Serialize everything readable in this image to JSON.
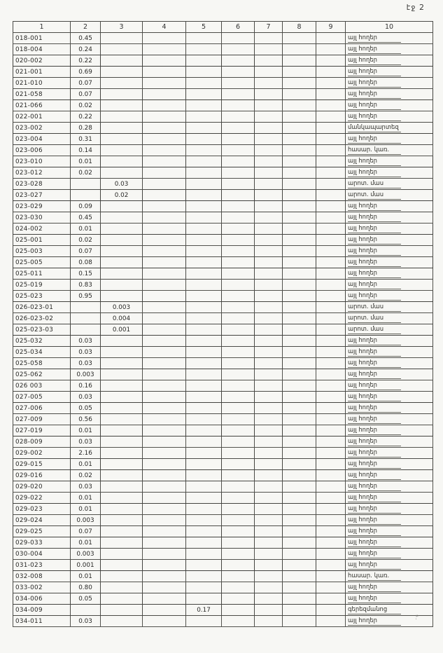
{
  "page": {
    "label": "էջ 2"
  },
  "table": {
    "headers": [
      "1",
      "2",
      "3",
      "4",
      "5",
      "6",
      "7",
      "8",
      "9",
      "10"
    ],
    "rows": [
      {
        "c1": "018-001",
        "c2": "0.45",
        "c10": "այլ հողեր"
      },
      {
        "c1": "018-004",
        "c2": "0.24",
        "c10": "այլ հողեր"
      },
      {
        "c1": "020-002",
        "c2": "0.22",
        "c10": "այլ հողեր"
      },
      {
        "c1": "021-001",
        "c2": "0.69",
        "c10": "այլ հողեր"
      },
      {
        "c1": "021-010",
        "c2": "0.07",
        "c10": "այլ հողեր"
      },
      {
        "c1": "021-058",
        "c2": "0.07",
        "c10": "այլ հողեր"
      },
      {
        "c1": "021-066",
        "c2": "0.02",
        "c10": "այլ հողեր"
      },
      {
        "c1": "022-001",
        "c2": "0.22",
        "c10": "այլ հողեր"
      },
      {
        "c1": "023-002",
        "c2": "0.28",
        "c10": "մանկապարտեզ"
      },
      {
        "c1": "023-004",
        "c2": "0.31",
        "c10": "այլ հողեր"
      },
      {
        "c1": "023-006",
        "c2": "0.14",
        "c10": "հասար. կառ."
      },
      {
        "c1": "023-010",
        "c2": "0.01",
        "c10": "այլ հողեր"
      },
      {
        "c1": "023-012",
        "c2": "0.02",
        "c10": "այլ հողեր"
      },
      {
        "c1": "023-028",
        "c3": "0.03",
        "c10": "արոտ. մաս"
      },
      {
        "c1": "023-027",
        "c3": "0.02",
        "c10": "արոտ. մաս"
      },
      {
        "c1": "023-029",
        "c2": "0.09",
        "c10": "այլ հողեր"
      },
      {
        "c1": "023-030",
        "c2": "0.45",
        "c10": "այլ հողեր"
      },
      {
        "c1": "024-002",
        "c2": "0.01",
        "c10": "այլ հողեր"
      },
      {
        "c1": "025-001",
        "c2": "0.02",
        "c10": "այլ հողեր"
      },
      {
        "c1": "025-003",
        "c2": "0.07",
        "c10": "այլ հողեր"
      },
      {
        "c1": "025-005",
        "c2": "0.08",
        "c10": "այլ հողեր"
      },
      {
        "c1": "025-011",
        "c2": "0.15",
        "c10": "այլ հողեր"
      },
      {
        "c1": "025-019",
        "c2": "0.83",
        "c10": "այլ հողեր"
      },
      {
        "c1": "025-023",
        "c2": "0.95",
        "c10": "այլ հողեր"
      },
      {
        "c1": "026-023-01",
        "c3": "0.003",
        "c10": "արոտ. մաս"
      },
      {
        "c1": "026-023-02",
        "c3": "0.004",
        "c10": "արոտ. մաս"
      },
      {
        "c1": "025-023-03",
        "c3": "0.001",
        "c10": "արոտ. մաս"
      },
      {
        "c1": "025-032",
        "c2": "0.03",
        "c10": "այլ հողեր"
      },
      {
        "c1": "025-034",
        "c2": "0.03",
        "c10": "այլ հողեր"
      },
      {
        "c1": "025-058",
        "c2": "0.03",
        "c10": "այլ հողեր"
      },
      {
        "c1": "025-062",
        "c2": "0.003",
        "c10": "այլ հողեր"
      },
      {
        "c1": "026 003",
        "c2": "0.16",
        "c10": "այլ հողեր"
      },
      {
        "c1": "027-005",
        "c2": "0.03",
        "c10": "այլ հողեր"
      },
      {
        "c1": "027-006",
        "c2": "0.05",
        "c10": "այլ հողեր"
      },
      {
        "c1": "027-009",
        "c2": "0.56",
        "c10": "այլ հողեր"
      },
      {
        "c1": "027-019",
        "c2": "0.01",
        "c10": "այլ հողեր"
      },
      {
        "c1": "028-009",
        "c2": "0.03",
        "c10": "այլ հողեր"
      },
      {
        "c1": "029-002",
        "c2": "2.16",
        "c10": "այլ հողեր"
      },
      {
        "c1": "029-015",
        "c2": "0.01",
        "c10": "այլ հողեր"
      },
      {
        "c1": "029-016",
        "c2": "0.02",
        "c10": "այլ հողեր"
      },
      {
        "c1": "029-020",
        "c2": "0.03",
        "c10": "այլ հողեր"
      },
      {
        "c1": "029-022",
        "c2": "0.01",
        "c10": "այլ հողեր"
      },
      {
        "c1": "029-023",
        "c2": "0.01",
        "c10": "այլ հողեր"
      },
      {
        "c1": "029-024",
        "c2": "0.003",
        "c10": "այլ հողեր"
      },
      {
        "c1": "029-025",
        "c2": "0.07",
        "c10": "այլ հողեր"
      },
      {
        "c1": "029-033",
        "c2": "0.01",
        "c10": "այլ հողեր"
      },
      {
        "c1": "030-004",
        "c2": "0.003",
        "c10": "այլ հողեր"
      },
      {
        "c1": "031-023",
        "c2": "0.001",
        "c10": "այլ հողեր"
      },
      {
        "c1": "032-008",
        "c2": "0.01",
        "c10": "հասար. կառ."
      },
      {
        "c1": "033-002",
        "c2": "0.80",
        "c10": "այլ հողեր"
      },
      {
        "c1": "034-006",
        "c2": "0.05",
        "c10": "այլ հողեր"
      },
      {
        "c1": "034-009",
        "c5": "0.17",
        "c10": "գերեզմանոց"
      },
      {
        "c1": "034-011",
        "c2": "0.03",
        "c10": "այլ հողեր"
      }
    ]
  }
}
